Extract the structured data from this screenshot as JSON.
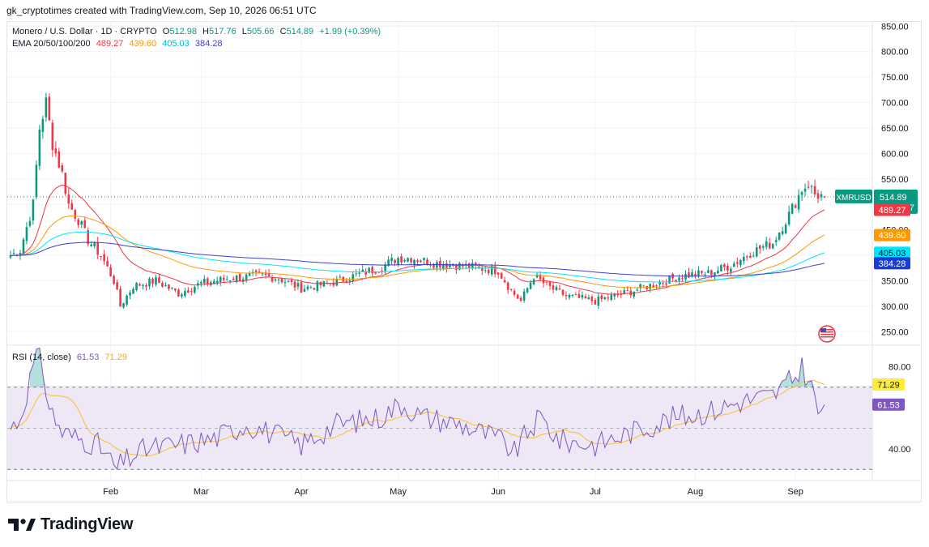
{
  "header": {
    "credit": "gk_cryptotimes created with TradingView.com, Sep 10, 2026 06:51 UTC"
  },
  "legend": {
    "symbol": "Monero / U.S. Dollar · 1D · CRYPTO",
    "ohlc": {
      "o_label": "O",
      "o": "512.98",
      "h_label": "H",
      "h": "517.76",
      "l_label": "L",
      "l": "505.66",
      "c_label": "C",
      "c": "514.89",
      "change": "+1.99 (+0.39%)"
    },
    "ema_label": "EMA 20/50/100/200",
    "ema_values": [
      "489.27",
      "439.60",
      "405.03",
      "384.28"
    ]
  },
  "rsi_legend": {
    "label": "RSI (14, close)",
    "rsi": "61.53",
    "ma": "71.29"
  },
  "colors": {
    "up": "#089981",
    "down": "#f23645",
    "ema20": "#f23645",
    "ema50": "#ff9800",
    "ema100": "#00e5ff",
    "ema200": "#3f3fcf",
    "rsi": "#7e57c2",
    "rsi_ma": "#fbc02d",
    "rsi_band": "#ede7f6"
  },
  "price_axis": {
    "ticks": [
      "850.00",
      "800.00",
      "750.00",
      "700.00",
      "650.00",
      "600.00",
      "550.00",
      "500.00",
      "450.00",
      "400.00",
      "350.00",
      "300.00",
      "250.00"
    ]
  },
  "rsi_axis": {
    "ticks": [
      "80.00",
      "40.00"
    ]
  },
  "time_axis": [
    "Feb",
    "Mar",
    "Apr",
    "May",
    "Jun",
    "Jul",
    "Aug",
    "Sep"
  ],
  "price_labels": {
    "symbol": "XMRUSD",
    "last": "514.89",
    "countdown": "17:08:17",
    "ema20": "489.27",
    "ema50": "439.60",
    "ema100": "405.03",
    "ema200": "384.28"
  },
  "chart_data": [
    {
      "type": "candlestick",
      "title": "Monero / U.S. Dollar · 1D · CRYPTO",
      "ylim": [
        225,
        860
      ],
      "x_start": "Jan 1",
      "x_end": "Sep 10",
      "months": [
        "Feb",
        "Mar",
        "Apr",
        "May",
        "Jun",
        "Jul",
        "Aug",
        "Sep"
      ],
      "close_keypoints": [
        {
          "x": "Jan 1",
          "y": 400
        },
        {
          "x": "Jan 4",
          "y": 410
        },
        {
          "x": "Jan 8",
          "y": 500
        },
        {
          "x": "Jan 10",
          "y": 650
        },
        {
          "x": "Jan 12",
          "y": 700
        },
        {
          "x": "Jan 14",
          "y": 620
        },
        {
          "x": "Jan 17",
          "y": 560
        },
        {
          "x": "Jan 19",
          "y": 500
        },
        {
          "x": "Jan 22",
          "y": 470
        },
        {
          "x": "Jan 25",
          "y": 430
        },
        {
          "x": "Jan 29",
          "y": 400
        },
        {
          "x": "Feb 2",
          "y": 350
        },
        {
          "x": "Feb 4",
          "y": 300
        },
        {
          "x": "Feb 8",
          "y": 340
        },
        {
          "x": "Feb 15",
          "y": 350
        },
        {
          "x": "Feb 22",
          "y": 325
        },
        {
          "x": "Mar 1",
          "y": 345
        },
        {
          "x": "Mar 10",
          "y": 355
        },
        {
          "x": "Mar 20",
          "y": 360
        },
        {
          "x": "Mar 25",
          "y": 355
        },
        {
          "x": "Apr 1",
          "y": 335
        },
        {
          "x": "Apr 10",
          "y": 345
        },
        {
          "x": "Apr 20",
          "y": 365
        },
        {
          "x": "Apr 25",
          "y": 375
        },
        {
          "x": "May 1",
          "y": 395
        },
        {
          "x": "May 5",
          "y": 395
        },
        {
          "x": "May 12",
          "y": 385
        },
        {
          "x": "May 20",
          "y": 380
        },
        {
          "x": "Jun 1",
          "y": 370
        },
        {
          "x": "Jun 5",
          "y": 330
        },
        {
          "x": "Jun 8",
          "y": 310
        },
        {
          "x": "Jun 12",
          "y": 360
        },
        {
          "x": "Jun 16",
          "y": 340
        },
        {
          "x": "Jun 22",
          "y": 320
        },
        {
          "x": "Jul 1",
          "y": 310
        },
        {
          "x": "Jul 10",
          "y": 325
        },
        {
          "x": "Jul 20",
          "y": 345
        },
        {
          "x": "Jul 28",
          "y": 360
        },
        {
          "x": "Aug 5",
          "y": 365
        },
        {
          "x": "Aug 12",
          "y": 380
        },
        {
          "x": "Aug 18",
          "y": 405
        },
        {
          "x": "Aug 25",
          "y": 425
        },
        {
          "x": "Aug 30",
          "y": 480
        },
        {
          "x": "Sep 3",
          "y": 530
        },
        {
          "x": "Sep 5",
          "y": 540
        },
        {
          "x": "Sep 7",
          "y": 520
        },
        {
          "x": "Sep 10",
          "y": 514.89
        }
      ],
      "series": [
        {
          "name": "EMA 20",
          "last": 489.27
        },
        {
          "name": "EMA 50",
          "last": 439.6
        },
        {
          "name": "EMA 100",
          "last": 405.03
        },
        {
          "name": "EMA 200",
          "last": 384.28
        }
      ],
      "legend": "top-left",
      "grid": true
    },
    {
      "type": "line",
      "title": "RSI (14, close)",
      "ylim": [
        25,
        90
      ],
      "bands": [
        30,
        50,
        70
      ],
      "keypoints": [
        {
          "x": "Jan 1",
          "y": 50
        },
        {
          "x": "Jan 4",
          "y": 55
        },
        {
          "x": "Jan 8",
          "y": 80
        },
        {
          "x": "Jan 10",
          "y": 88
        },
        {
          "x": "Jan 13",
          "y": 60
        },
        {
          "x": "Jan 17",
          "y": 48
        },
        {
          "x": "Jan 22",
          "y": 45
        },
        {
          "x": "Jan 28",
          "y": 42
        },
        {
          "x": "Feb 3",
          "y": 30
        },
        {
          "x": "Feb 5",
          "y": 34
        },
        {
          "x": "Feb 12",
          "y": 40
        },
        {
          "x": "Feb 22",
          "y": 42
        },
        {
          "x": "Mar 5",
          "y": 45
        },
        {
          "x": "Mar 15",
          "y": 52
        },
        {
          "x": "Mar 22",
          "y": 48
        },
        {
          "x": "Apr 1",
          "y": 42
        },
        {
          "x": "Apr 12",
          "y": 52
        },
        {
          "x": "Apr 25",
          "y": 55
        },
        {
          "x": "May 2",
          "y": 62
        },
        {
          "x": "May 8",
          "y": 56
        },
        {
          "x": "May 20",
          "y": 52
        },
        {
          "x": "Jun 1",
          "y": 45
        },
        {
          "x": "Jun 6",
          "y": 38
        },
        {
          "x": "Jun 10",
          "y": 48
        },
        {
          "x": "Jun 14",
          "y": 55
        },
        {
          "x": "Jun 20",
          "y": 44
        },
        {
          "x": "Jul 1",
          "y": 42
        },
        {
          "x": "Jul 12",
          "y": 48
        },
        {
          "x": "Jul 25",
          "y": 55
        },
        {
          "x": "Aug 5",
          "y": 58
        },
        {
          "x": "Aug 15",
          "y": 63
        },
        {
          "x": "Aug 25",
          "y": 66
        },
        {
          "x": "Sep 1",
          "y": 75
        },
        {
          "x": "Sep 3",
          "y": 80
        },
        {
          "x": "Sep 6",
          "y": 70
        },
        {
          "x": "Sep 8",
          "y": 58
        },
        {
          "x": "Sep 10",
          "y": 61.53
        }
      ],
      "last_rsi": 61.53,
      "last_ma": 71.29
    }
  ]
}
